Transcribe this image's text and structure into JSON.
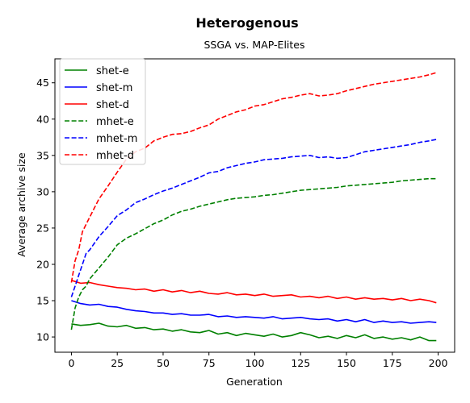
{
  "chart_data": {
    "type": "line",
    "title": "Heterogenous",
    "subtitle": "SSGA vs. MAP-Elites",
    "xlabel": "Generation",
    "ylabel": "Average archive size",
    "xlim": [
      -9,
      209
    ],
    "ylim": [
      7.9,
      48.3
    ],
    "xticks": [
      0,
      25,
      50,
      75,
      100,
      125,
      150,
      175,
      200
    ],
    "yticks": [
      10,
      15,
      20,
      25,
      30,
      35,
      40,
      45
    ],
    "grid": false,
    "legend": "top-left",
    "series": [
      {
        "name": "shet-e",
        "color": "#008000",
        "dash": "solid",
        "x": [
          0,
          5,
          10,
          15,
          20,
          25,
          30,
          35,
          40,
          45,
          50,
          55,
          60,
          65,
          70,
          75,
          80,
          85,
          90,
          95,
          100,
          105,
          110,
          115,
          120,
          125,
          130,
          135,
          140,
          145,
          150,
          155,
          160,
          165,
          170,
          175,
          180,
          185,
          190,
          195,
          199
        ],
        "y": [
          11.8,
          11.6,
          11.7,
          11.9,
          11.5,
          11.4,
          11.6,
          11.2,
          11.3,
          11.0,
          11.1,
          10.8,
          11.0,
          10.7,
          10.6,
          10.9,
          10.4,
          10.6,
          10.2,
          10.5,
          10.3,
          10.1,
          10.4,
          10.0,
          10.2,
          10.6,
          10.3,
          9.9,
          10.1,
          9.8,
          10.2,
          9.9,
          10.3,
          9.8,
          10.0,
          9.7,
          9.9,
          9.6,
          10.0,
          9.5,
          9.5
        ]
      },
      {
        "name": "shet-m",
        "color": "#0000ff",
        "dash": "solid",
        "x": [
          0,
          5,
          10,
          15,
          20,
          25,
          30,
          35,
          40,
          45,
          50,
          55,
          60,
          65,
          70,
          75,
          80,
          85,
          90,
          95,
          100,
          105,
          110,
          115,
          120,
          125,
          130,
          135,
          140,
          145,
          150,
          155,
          160,
          165,
          170,
          175,
          180,
          185,
          190,
          195,
          199
        ],
        "y": [
          15.0,
          14.6,
          14.4,
          14.5,
          14.2,
          14.1,
          13.8,
          13.6,
          13.5,
          13.3,
          13.3,
          13.1,
          13.2,
          13.0,
          13.0,
          13.1,
          12.8,
          12.9,
          12.7,
          12.8,
          12.7,
          12.6,
          12.8,
          12.5,
          12.6,
          12.7,
          12.5,
          12.4,
          12.5,
          12.2,
          12.4,
          12.1,
          12.4,
          12.0,
          12.2,
          12.0,
          12.1,
          11.9,
          12.0,
          12.1,
          12.0
        ]
      },
      {
        "name": "shet-d",
        "color": "#ff0000",
        "dash": "solid",
        "x": [
          0,
          5,
          10,
          15,
          20,
          25,
          30,
          35,
          40,
          45,
          50,
          55,
          60,
          65,
          70,
          75,
          80,
          85,
          90,
          95,
          100,
          105,
          110,
          115,
          120,
          125,
          130,
          135,
          140,
          145,
          150,
          155,
          160,
          165,
          170,
          175,
          180,
          185,
          190,
          195,
          199
        ],
        "y": [
          17.8,
          17.4,
          17.5,
          17.2,
          17.0,
          16.8,
          16.7,
          16.5,
          16.6,
          16.3,
          16.5,
          16.2,
          16.4,
          16.1,
          16.3,
          16.0,
          15.9,
          16.1,
          15.8,
          15.9,
          15.7,
          15.9,
          15.6,
          15.7,
          15.8,
          15.5,
          15.6,
          15.4,
          15.6,
          15.3,
          15.5,
          15.2,
          15.4,
          15.2,
          15.3,
          15.1,
          15.3,
          15.0,
          15.2,
          15.0,
          14.7
        ]
      },
      {
        "name": "mhet-e",
        "color": "#008000",
        "dash": "dashed",
        "x": [
          0,
          2,
          4,
          6,
          8,
          10,
          15,
          20,
          25,
          30,
          35,
          40,
          45,
          50,
          55,
          60,
          65,
          70,
          75,
          80,
          85,
          90,
          95,
          100,
          105,
          110,
          115,
          120,
          125,
          130,
          135,
          140,
          145,
          150,
          155,
          160,
          165,
          170,
          175,
          180,
          185,
          190,
          195,
          199
        ],
        "y": [
          11.0,
          14.0,
          15.5,
          16.5,
          17.0,
          18.0,
          19.5,
          21.0,
          22.7,
          23.6,
          24.2,
          24.9,
          25.6,
          26.1,
          26.8,
          27.3,
          27.6,
          28.0,
          28.3,
          28.6,
          28.9,
          29.1,
          29.2,
          29.3,
          29.5,
          29.6,
          29.8,
          30.0,
          30.2,
          30.3,
          30.4,
          30.5,
          30.6,
          30.8,
          30.9,
          31.0,
          31.1,
          31.2,
          31.3,
          31.5,
          31.6,
          31.7,
          31.8,
          31.8
        ]
      },
      {
        "name": "mhet-m",
        "color": "#0000ff",
        "dash": "dashed",
        "x": [
          0,
          2,
          4,
          6,
          8,
          10,
          15,
          20,
          25,
          30,
          35,
          40,
          45,
          50,
          55,
          60,
          65,
          70,
          75,
          80,
          85,
          90,
          95,
          100,
          105,
          110,
          115,
          120,
          125,
          130,
          135,
          140,
          145,
          150,
          155,
          160,
          165,
          170,
          175,
          180,
          185,
          190,
          195,
          199
        ],
        "y": [
          15.5,
          17.0,
          18.5,
          20.0,
          21.5,
          22.0,
          23.8,
          25.2,
          26.7,
          27.5,
          28.5,
          29.0,
          29.6,
          30.1,
          30.5,
          31.0,
          31.5,
          32.0,
          32.6,
          32.8,
          33.3,
          33.6,
          33.9,
          34.1,
          34.4,
          34.5,
          34.6,
          34.8,
          34.9,
          35.0,
          34.7,
          34.8,
          34.6,
          34.7,
          35.1,
          35.5,
          35.7,
          35.9,
          36.1,
          36.3,
          36.5,
          36.8,
          37.0,
          37.2
        ]
      },
      {
        "name": "mhet-d",
        "color": "#ff0000",
        "dash": "dashed",
        "x": [
          0,
          2,
          4,
          6,
          8,
          10,
          15,
          20,
          25,
          30,
          35,
          40,
          45,
          50,
          55,
          60,
          65,
          70,
          75,
          80,
          85,
          90,
          95,
          100,
          105,
          110,
          115,
          120,
          125,
          130,
          135,
          140,
          145,
          150,
          155,
          160,
          165,
          170,
          175,
          180,
          185,
          190,
          195,
          199
        ],
        "y": [
          17.5,
          20.5,
          22.0,
          24.5,
          25.5,
          26.5,
          29.0,
          30.8,
          32.7,
          34.5,
          35.5,
          36.0,
          37.0,
          37.5,
          37.9,
          38.0,
          38.3,
          38.8,
          39.2,
          40.0,
          40.5,
          41.0,
          41.3,
          41.8,
          42.0,
          42.4,
          42.8,
          43.0,
          43.3,
          43.5,
          43.2,
          43.3,
          43.5,
          43.9,
          44.2,
          44.5,
          44.8,
          45.0,
          45.2,
          45.4,
          45.6,
          45.8,
          46.1,
          46.4
        ]
      }
    ]
  }
}
